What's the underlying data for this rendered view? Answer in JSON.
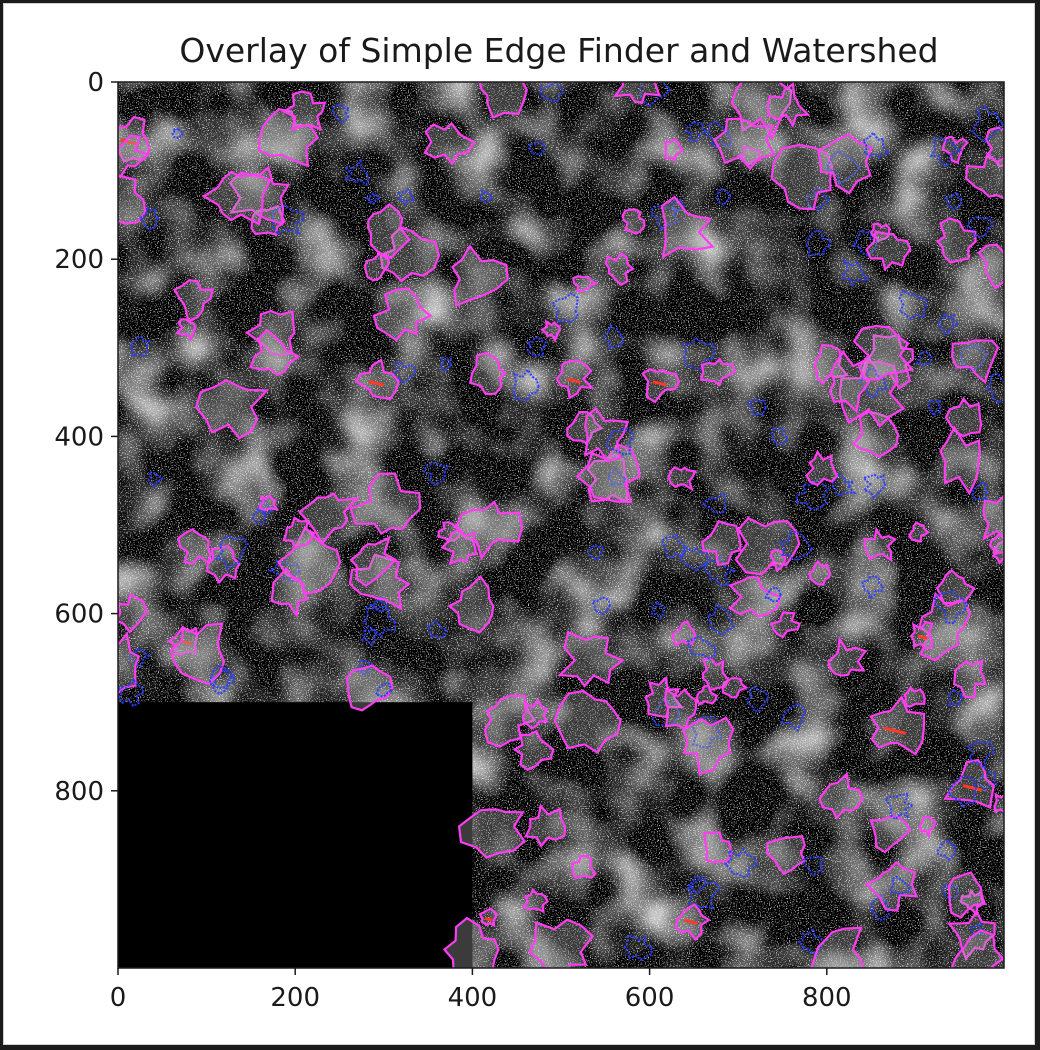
{
  "chart_data": {
    "type": "image",
    "title": "Overlay of Simple Edge Finder and Watershed",
    "xlabel": "",
    "ylabel": "",
    "xlim": [
      0,
      1000
    ],
    "ylim": [
      1000,
      0
    ],
    "x_ticks": [
      0,
      200,
      400,
      600,
      800
    ],
    "y_ticks": [
      0,
      200,
      400,
      600,
      800
    ],
    "x_tick_labels": [
      "0",
      "200",
      "400",
      "600",
      "800"
    ],
    "y_tick_labels": [
      "0",
      "200",
      "400",
      "600",
      "800"
    ],
    "blank_region": {
      "description": "unimaged (black) area",
      "x": [
        0,
        400
      ],
      "y": [
        700,
        1000
      ]
    },
    "layers": [
      {
        "name": "Simple Edge Finder",
        "color": "#ff3df2"
      },
      {
        "name": "Watershed",
        "color": "#2b3dff"
      },
      {
        "name": "overlap",
        "color": "#ff3a2a"
      }
    ]
  }
}
